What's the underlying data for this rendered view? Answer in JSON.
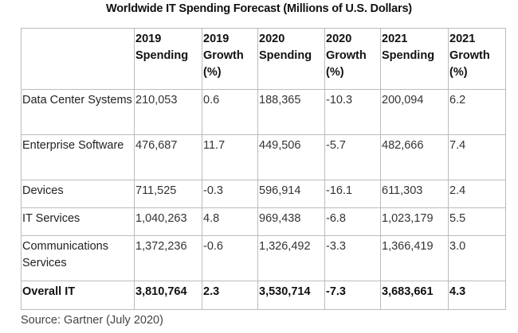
{
  "title": "Worldwide IT Spending Forecast (Millions of U.S. Dollars)",
  "table": {
    "headers": [
      "",
      "2019 Spending",
      "2019 Growth (%)",
      "2020 Spending",
      "2020 Growth (%)",
      "2021 Spending",
      "2021 Growth (%)"
    ],
    "rows": [
      [
        "Data Center Systems",
        "210,053",
        "0.6",
        "188,365",
        "-10.3",
        "200,094",
        "6.2"
      ],
      [
        "Enterprise Software",
        "476,687",
        "11.7",
        "449,506",
        "-5.7",
        "482,666",
        "7.4"
      ],
      [
        "Devices",
        "711,525",
        "-0.3",
        "596,914",
        "-16.1",
        "611,303",
        "2.4"
      ],
      [
        "IT Services",
        "1,040,263",
        "4.8",
        "969,438",
        "-6.8",
        "1,023,179",
        "5.5"
      ],
      [
        "Communications Services",
        "1,372,236",
        "-0.6",
        "1,326,492",
        "-3.3",
        "1,366,419",
        "3.0"
      ],
      [
        "Overall IT",
        "3,810,764",
        "2.3",
        "3,530,714",
        "-7.3",
        "3,683,661",
        "4.3"
      ]
    ]
  },
  "source": "Source: Gartner (July 2020)"
}
